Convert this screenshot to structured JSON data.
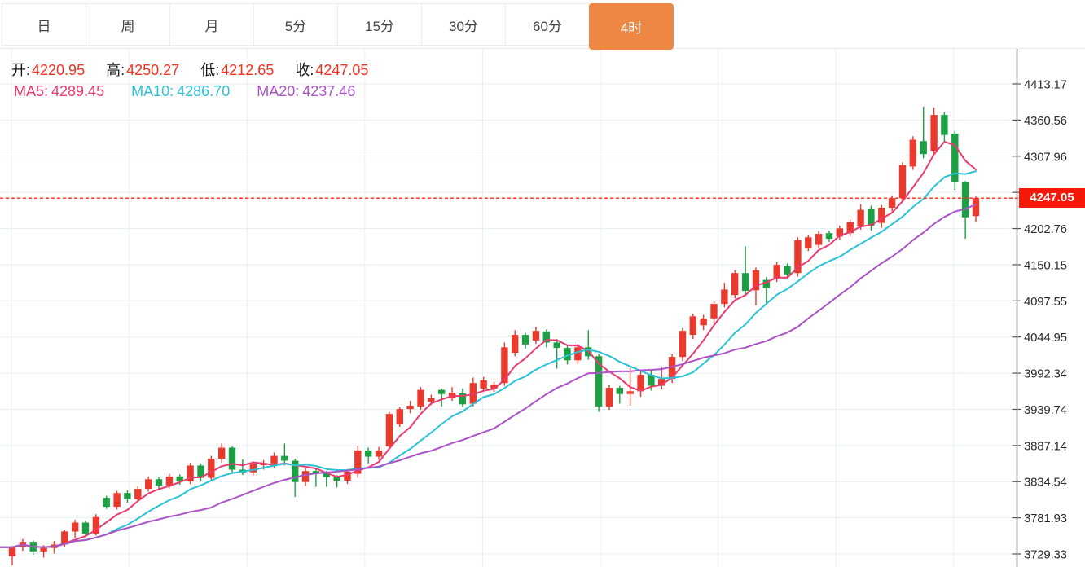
{
  "tabs": {
    "items": [
      {
        "label": "日",
        "active": false
      },
      {
        "label": "周",
        "active": false
      },
      {
        "label": "月",
        "active": false
      },
      {
        "label": "5分",
        "active": false
      },
      {
        "label": "15分",
        "active": false
      },
      {
        "label": "30分",
        "active": false
      },
      {
        "label": "60分",
        "active": false
      },
      {
        "label": "4时",
        "active": true
      }
    ]
  },
  "ohlc": {
    "open_label": "开:",
    "open": "4220.95",
    "high_label": "高:",
    "high": "4250.27",
    "low_label": "低:",
    "low": "4212.65",
    "close_label": "收:",
    "close": "4247.05"
  },
  "ma_legend": {
    "ma5_label": "MA5:",
    "ma5": "4289.45",
    "ma10_label": "MA10:",
    "ma10": "4286.70",
    "ma20_label": "MA20:",
    "ma20": "4237.46"
  },
  "price_tag": {
    "value": "4247.05"
  },
  "chart_data": {
    "type": "candlestick",
    "timeframe_selected": "4时",
    "current_price": 4247.05,
    "last_bar": {
      "open": 4220.95,
      "high": 4250.27,
      "low": 4212.65,
      "close": 4247.05
    },
    "y_ticks": [
      4413.17,
      4360.56,
      4307.96,
      4255.36,
      4202.76,
      4150.15,
      4097.55,
      4044.95,
      3992.34,
      3939.74,
      3887.14,
      3834.54,
      3781.93,
      3729.33
    ],
    "y_range": [
      3729.33,
      4413.17
    ],
    "grid": true,
    "legend_position": "top-left",
    "ma_periods": [
      5,
      10,
      20
    ],
    "ma_values": {
      "ma5": 4289.45,
      "ma10": 4286.7,
      "ma20": 4237.46
    },
    "colors": {
      "up": "#ea3a2d",
      "down": "#1ba143",
      "ma5": "#ea3a70",
      "ma10": "#2bc2d8",
      "ma20": "#ab53c6",
      "grid": "#e7eff7",
      "axis_line": "#4a4a4a",
      "axis_text": "#2a2a2a",
      "dotted_line": "#ff2615",
      "price_tag_bg": "#f6190a",
      "active_tab": "#ee8743",
      "ohlc_value": "#f5321f"
    },
    "candles_format": [
      "open",
      "high",
      "low",
      "close"
    ],
    "candles": [
      [
        3726,
        3741,
        3713,
        3739
      ],
      [
        3739,
        3751,
        3734,
        3747
      ],
      [
        3747,
        3749,
        3728,
        3733
      ],
      [
        3733,
        3742,
        3724,
        3738
      ],
      [
        3738,
        3748,
        3730,
        3743
      ],
      [
        3743,
        3764,
        3739,
        3762
      ],
      [
        3762,
        3779,
        3753,
        3775
      ],
      [
        3775,
        3778,
        3755,
        3759
      ],
      [
        3759,
        3787,
        3756,
        3783
      ],
      [
        3811,
        3814,
        3795,
        3798
      ],
      [
        3798,
        3821,
        3794,
        3818
      ],
      [
        3818,
        3822,
        3804,
        3809
      ],
      [
        3809,
        3828,
        3805,
        3824
      ],
      [
        3824,
        3842,
        3820,
        3838
      ],
      [
        3838,
        3841,
        3824,
        3829
      ],
      [
        3829,
        3846,
        3825,
        3842
      ],
      [
        3842,
        3845,
        3830,
        3835
      ],
      [
        3835,
        3862,
        3831,
        3858
      ],
      [
        3858,
        3861,
        3835,
        3840
      ],
      [
        3840,
        3872,
        3836,
        3868
      ],
      [
        3868,
        3890,
        3862,
        3884
      ],
      [
        3884,
        3886,
        3848,
        3852
      ],
      [
        3852,
        3867,
        3844,
        3848
      ],
      [
        3848,
        3864,
        3843,
        3860
      ],
      [
        3860,
        3866,
        3852,
        3861
      ],
      [
        3861,
        3877,
        3855,
        3872
      ],
      [
        3872,
        3890,
        3858,
        3865
      ],
      [
        3865,
        3868,
        3812,
        3834
      ],
      [
        3834,
        3854,
        3828,
        3850
      ],
      [
        3850,
        3853,
        3827,
        3847
      ],
      [
        3847,
        3850,
        3827,
        3841
      ],
      [
        3841,
        3844,
        3826,
        3836
      ],
      [
        3836,
        3853,
        3831,
        3849
      ],
      [
        3846,
        3887,
        3840,
        3880
      ],
      [
        3880,
        3884,
        3861,
        3871
      ],
      [
        3871,
        3885,
        3866,
        3880
      ],
      [
        3886,
        3936,
        3881,
        3933
      ],
      [
        3918,
        3943,
        3914,
        3940
      ],
      [
        3940,
        3952,
        3934,
        3945
      ],
      [
        3944,
        3972,
        3939,
        3968
      ],
      [
        3951,
        3961,
        3946,
        3956
      ],
      [
        3968,
        3970,
        3944,
        3962
      ],
      [
        3956,
        3972,
        3952,
        3964
      ],
      [
        3963,
        3970,
        3943,
        3947
      ],
      [
        3948,
        3986,
        3944,
        3978
      ],
      [
        3970,
        3987,
        3966,
        3982
      ],
      [
        3970,
        3980,
        3965,
        3976
      ],
      [
        3978,
        4037,
        3974,
        4030
      ],
      [
        4022,
        4055,
        4017,
        4048
      ],
      [
        4048,
        4051,
        4028,
        4034
      ],
      [
        4040,
        4060,
        4035,
        4054
      ],
      [
        4053,
        4056,
        4030,
        4037
      ],
      [
        4037,
        4042,
        3999,
        4029
      ],
      [
        4029,
        4033,
        4005,
        4011
      ],
      [
        4011,
        4035,
        4006,
        4030
      ],
      [
        4030,
        4055,
        4012,
        4017
      ],
      [
        4017,
        4020,
        3936,
        3944
      ],
      [
        3944,
        3976,
        3939,
        3971
      ],
      [
        3971,
        3974,
        3948,
        3962
      ],
      [
        3962,
        4000,
        3945,
        3966
      ],
      [
        3966,
        3995,
        3958,
        3990
      ],
      [
        3990,
        3997,
        3967,
        3974
      ],
      [
        3974,
        4001,
        3969,
        3984
      ],
      [
        3984,
        4020,
        3978,
        4016
      ],
      [
        4016,
        4058,
        4010,
        4054
      ],
      [
        4048,
        4079,
        4042,
        4075
      ],
      [
        4062,
        4077,
        4055,
        4072
      ],
      [
        4072,
        4097,
        4066,
        4093
      ],
      [
        4093,
        4124,
        4088,
        4114
      ],
      [
        4106,
        4142,
        4101,
        4138
      ],
      [
        4138,
        4177,
        4106,
        4112
      ],
      [
        4113,
        4146,
        4091,
        4142
      ],
      [
        4128,
        4132,
        4094,
        4116
      ],
      [
        4130,
        4154,
        4125,
        4150
      ],
      [
        4148,
        4152,
        4130,
        4136
      ],
      [
        4138,
        4190,
        4133,
        4186
      ],
      [
        4174,
        4194,
        4170,
        4190
      ],
      [
        4179,
        4199,
        4174,
        4195
      ],
      [
        4196,
        4200,
        4183,
        4188
      ],
      [
        4191,
        4207,
        4186,
        4203
      ],
      [
        4196,
        4216,
        4191,
        4212
      ],
      [
        4206,
        4238,
        4201,
        4230
      ],
      [
        4232,
        4236,
        4200,
        4207
      ],
      [
        4211,
        4237,
        4204,
        4233
      ],
      [
        4233,
        4251,
        4228,
        4247
      ],
      [
        4247,
        4299,
        4242,
        4295
      ],
      [
        4293,
        4337,
        4288,
        4332
      ],
      [
        4330,
        4380,
        4305,
        4311
      ],
      [
        4316,
        4379,
        4311,
        4368
      ],
      [
        4368,
        4372,
        4330,
        4339
      ],
      [
        4341,
        4345,
        4259,
        4270
      ],
      [
        4270,
        4272,
        4188,
        4219
      ],
      [
        4220.95,
        4250.27,
        4212.65,
        4247.05
      ]
    ]
  }
}
